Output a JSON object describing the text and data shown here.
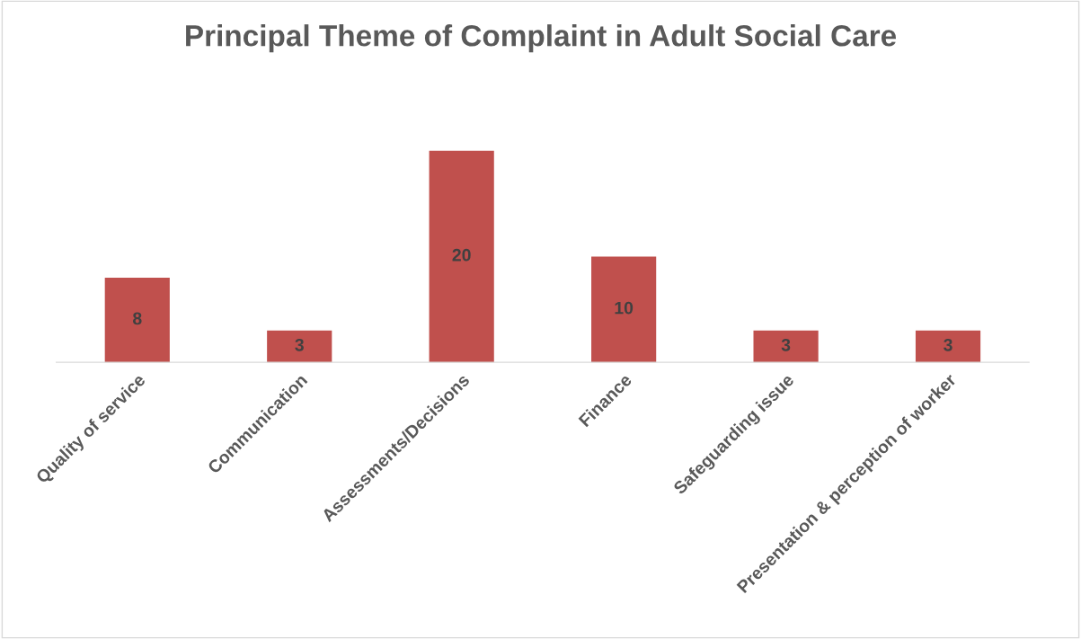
{
  "chart_data": {
    "type": "bar",
    "title": "Principal Theme of Complaint in Adult Social Care",
    "categories": [
      "Quality of service",
      "Communication",
      "Assessments/Decisions",
      "Finance",
      "Safeguarding issue",
      "Presentation & perception of worker"
    ],
    "values": [
      8,
      3,
      20,
      10,
      3,
      3
    ],
    "color": "#c0504d",
    "data_labels": true,
    "grid": false,
    "legend": false
  }
}
